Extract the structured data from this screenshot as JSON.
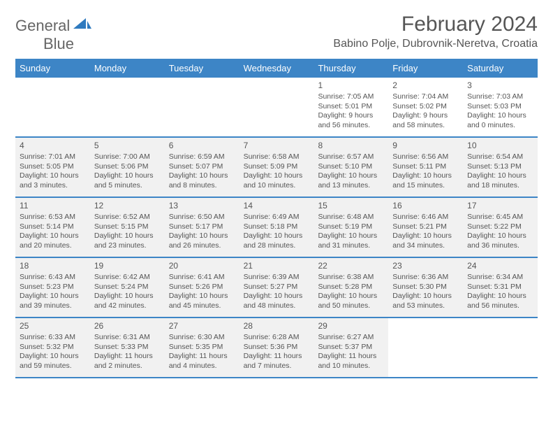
{
  "logo": {
    "word1": "General",
    "word2": "Blue"
  },
  "title": "February 2024",
  "location": "Babino Polje, Dubrovnik-Neretva, Croatia",
  "colors": {
    "header_bg": "#3d85c6",
    "header_text": "#ffffff",
    "row_border": "#3d85c6",
    "shade_bg": "#f1f1f1",
    "cell_bg": "#ffffff",
    "text": "#555555",
    "logo_gray": "#666666",
    "logo_blue": "#2f7abf"
  },
  "dayNames": [
    "Sunday",
    "Monday",
    "Tuesday",
    "Wednesday",
    "Thursday",
    "Friday",
    "Saturday"
  ],
  "weeks": [
    [
      {
        "empty": true
      },
      {
        "empty": true
      },
      {
        "empty": true
      },
      {
        "empty": true
      },
      {
        "num": "1",
        "sunrise": "Sunrise: 7:05 AM",
        "sunset": "Sunset: 5:01 PM",
        "daylight": "Daylight: 9 hours and 56 minutes."
      },
      {
        "num": "2",
        "sunrise": "Sunrise: 7:04 AM",
        "sunset": "Sunset: 5:02 PM",
        "daylight": "Daylight: 9 hours and 58 minutes."
      },
      {
        "num": "3",
        "sunrise": "Sunrise: 7:03 AM",
        "sunset": "Sunset: 5:03 PM",
        "daylight": "Daylight: 10 hours and 0 minutes."
      }
    ],
    [
      {
        "num": "4",
        "sunrise": "Sunrise: 7:01 AM",
        "sunset": "Sunset: 5:05 PM",
        "daylight": "Daylight: 10 hours and 3 minutes.",
        "shade": true
      },
      {
        "num": "5",
        "sunrise": "Sunrise: 7:00 AM",
        "sunset": "Sunset: 5:06 PM",
        "daylight": "Daylight: 10 hours and 5 minutes.",
        "shade": true
      },
      {
        "num": "6",
        "sunrise": "Sunrise: 6:59 AM",
        "sunset": "Sunset: 5:07 PM",
        "daylight": "Daylight: 10 hours and 8 minutes.",
        "shade": true
      },
      {
        "num": "7",
        "sunrise": "Sunrise: 6:58 AM",
        "sunset": "Sunset: 5:09 PM",
        "daylight": "Daylight: 10 hours and 10 minutes.",
        "shade": true
      },
      {
        "num": "8",
        "sunrise": "Sunrise: 6:57 AM",
        "sunset": "Sunset: 5:10 PM",
        "daylight": "Daylight: 10 hours and 13 minutes.",
        "shade": true
      },
      {
        "num": "9",
        "sunrise": "Sunrise: 6:56 AM",
        "sunset": "Sunset: 5:11 PM",
        "daylight": "Daylight: 10 hours and 15 minutes.",
        "shade": true
      },
      {
        "num": "10",
        "sunrise": "Sunrise: 6:54 AM",
        "sunset": "Sunset: 5:13 PM",
        "daylight": "Daylight: 10 hours and 18 minutes.",
        "shade": true
      }
    ],
    [
      {
        "num": "11",
        "sunrise": "Sunrise: 6:53 AM",
        "sunset": "Sunset: 5:14 PM",
        "daylight": "Daylight: 10 hours and 20 minutes.",
        "shade": true
      },
      {
        "num": "12",
        "sunrise": "Sunrise: 6:52 AM",
        "sunset": "Sunset: 5:15 PM",
        "daylight": "Daylight: 10 hours and 23 minutes.",
        "shade": true
      },
      {
        "num": "13",
        "sunrise": "Sunrise: 6:50 AM",
        "sunset": "Sunset: 5:17 PM",
        "daylight": "Daylight: 10 hours and 26 minutes.",
        "shade": true
      },
      {
        "num": "14",
        "sunrise": "Sunrise: 6:49 AM",
        "sunset": "Sunset: 5:18 PM",
        "daylight": "Daylight: 10 hours and 28 minutes.",
        "shade": true
      },
      {
        "num": "15",
        "sunrise": "Sunrise: 6:48 AM",
        "sunset": "Sunset: 5:19 PM",
        "daylight": "Daylight: 10 hours and 31 minutes.",
        "shade": true
      },
      {
        "num": "16",
        "sunrise": "Sunrise: 6:46 AM",
        "sunset": "Sunset: 5:21 PM",
        "daylight": "Daylight: 10 hours and 34 minutes.",
        "shade": true
      },
      {
        "num": "17",
        "sunrise": "Sunrise: 6:45 AM",
        "sunset": "Sunset: 5:22 PM",
        "daylight": "Daylight: 10 hours and 36 minutes.",
        "shade": true
      }
    ],
    [
      {
        "num": "18",
        "sunrise": "Sunrise: 6:43 AM",
        "sunset": "Sunset: 5:23 PM",
        "daylight": "Daylight: 10 hours and 39 minutes.",
        "shade": true
      },
      {
        "num": "19",
        "sunrise": "Sunrise: 6:42 AM",
        "sunset": "Sunset: 5:24 PM",
        "daylight": "Daylight: 10 hours and 42 minutes.",
        "shade": true
      },
      {
        "num": "20",
        "sunrise": "Sunrise: 6:41 AM",
        "sunset": "Sunset: 5:26 PM",
        "daylight": "Daylight: 10 hours and 45 minutes.",
        "shade": true
      },
      {
        "num": "21",
        "sunrise": "Sunrise: 6:39 AM",
        "sunset": "Sunset: 5:27 PM",
        "daylight": "Daylight: 10 hours and 48 minutes.",
        "shade": true
      },
      {
        "num": "22",
        "sunrise": "Sunrise: 6:38 AM",
        "sunset": "Sunset: 5:28 PM",
        "daylight": "Daylight: 10 hours and 50 minutes.",
        "shade": true
      },
      {
        "num": "23",
        "sunrise": "Sunrise: 6:36 AM",
        "sunset": "Sunset: 5:30 PM",
        "daylight": "Daylight: 10 hours and 53 minutes.",
        "shade": true
      },
      {
        "num": "24",
        "sunrise": "Sunrise: 6:34 AM",
        "sunset": "Sunset: 5:31 PM",
        "daylight": "Daylight: 10 hours and 56 minutes.",
        "shade": true
      }
    ],
    [
      {
        "num": "25",
        "sunrise": "Sunrise: 6:33 AM",
        "sunset": "Sunset: 5:32 PM",
        "daylight": "Daylight: 10 hours and 59 minutes.",
        "shade": true
      },
      {
        "num": "26",
        "sunrise": "Sunrise: 6:31 AM",
        "sunset": "Sunset: 5:33 PM",
        "daylight": "Daylight: 11 hours and 2 minutes.",
        "shade": true
      },
      {
        "num": "27",
        "sunrise": "Sunrise: 6:30 AM",
        "sunset": "Sunset: 5:35 PM",
        "daylight": "Daylight: 11 hours and 4 minutes.",
        "shade": true
      },
      {
        "num": "28",
        "sunrise": "Sunrise: 6:28 AM",
        "sunset": "Sunset: 5:36 PM",
        "daylight": "Daylight: 11 hours and 7 minutes.",
        "shade": true
      },
      {
        "num": "29",
        "sunrise": "Sunrise: 6:27 AM",
        "sunset": "Sunset: 5:37 PM",
        "daylight": "Daylight: 11 hours and 10 minutes.",
        "shade": true
      },
      {
        "empty": true
      },
      {
        "empty": true
      }
    ]
  ]
}
